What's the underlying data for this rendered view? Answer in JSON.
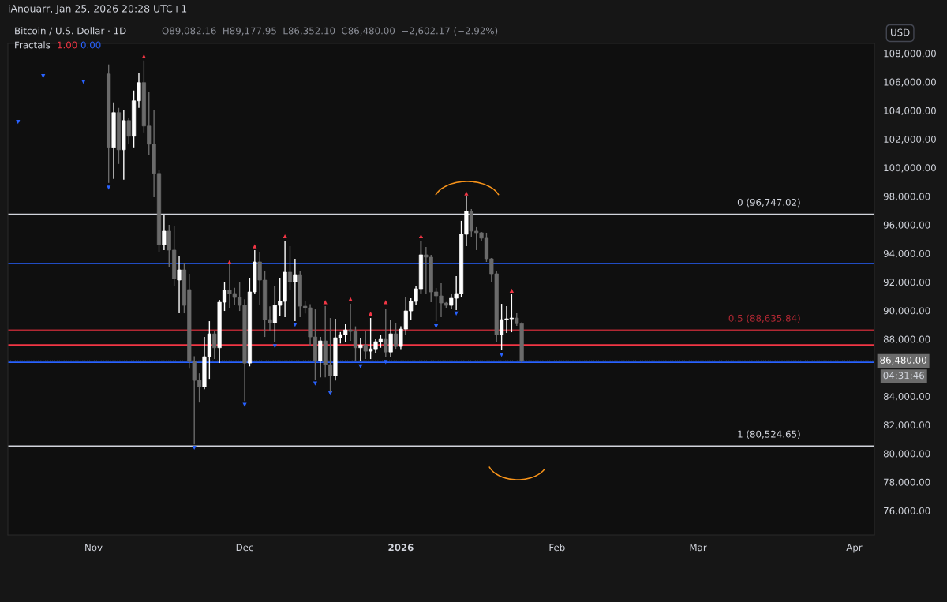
{
  "chart_data": {
    "type": "candlestick",
    "title": "Bitcoin / U.S. Dollar · 1D",
    "annotations": [
      "iAnouarr, Jan 25, 2026 20:28 UTC+1",
      "O89,082.16  H89,177.95  L86,352.10  C86,480.00  −2,602.17 (−2.92%)",
      "Fractals",
      "1.00",
      "0.00",
      "USD",
      "04:31:46"
    ],
    "x": [
      "2025-11-04",
      "2025-11-05",
      "2025-11-06",
      "2025-11-07",
      "2025-11-08",
      "2025-11-09",
      "2025-11-10",
      "2025-11-11",
      "2025-11-12",
      "2025-11-13",
      "2025-11-14",
      "2025-11-15",
      "2025-11-16",
      "2025-11-17",
      "2025-11-18",
      "2025-11-19",
      "2025-11-20",
      "2025-11-21",
      "2025-11-22",
      "2025-11-23",
      "2025-11-24",
      "2025-11-25",
      "2025-11-26",
      "2025-11-27",
      "2025-11-28",
      "2025-11-29",
      "2025-11-30",
      "2025-12-01",
      "2025-12-02",
      "2025-12-03",
      "2025-12-04",
      "2025-12-05",
      "2025-12-06",
      "2025-12-07",
      "2025-12-08",
      "2025-12-09",
      "2025-12-10",
      "2025-12-11",
      "2025-12-12",
      "2025-12-13",
      "2025-12-14",
      "2025-12-15",
      "2025-12-16",
      "2025-12-17",
      "2025-12-18",
      "2025-12-19",
      "2025-12-20",
      "2025-12-21",
      "2025-12-22",
      "2025-12-23",
      "2025-12-24",
      "2025-12-25",
      "2025-12-26",
      "2025-12-27",
      "2025-12-28",
      "2025-12-29",
      "2025-12-30",
      "2025-12-31",
      "2026-01-01",
      "2026-01-02",
      "2026-01-03",
      "2026-01-04",
      "2026-01-05",
      "2026-01-06",
      "2026-01-07",
      "2026-01-08",
      "2026-01-09",
      "2026-01-10",
      "2026-01-11",
      "2026-01-12",
      "2026-01-13",
      "2026-01-14",
      "2026-01-15",
      "2026-01-16",
      "2026-01-17",
      "2026-01-18",
      "2026-01-19",
      "2026-01-20",
      "2026-01-21",
      "2026-01-22",
      "2026-01-23",
      "2026-01-24",
      "2026-01-25"
    ],
    "ohlc": [
      [
        106563,
        107226,
        98934,
        101422
      ],
      [
        101422,
        104573,
        99210,
        103854
      ],
      [
        103854,
        104186,
        100261,
        101256
      ],
      [
        101256,
        104020,
        99155,
        103300
      ],
      [
        103300,
        103467,
        101643,
        102200
      ],
      [
        102200,
        105402,
        101422,
        104683
      ],
      [
        104683,
        106618,
        104186,
        105955
      ],
      [
        105955,
        107500,
        102472,
        102914
      ],
      [
        102914,
        105291,
        100869,
        101643
      ],
      [
        101643,
        104020,
        97939,
        99597
      ],
      [
        99597,
        99818,
        94070,
        94622
      ],
      [
        94622,
        96667,
        94235,
        95561
      ],
      [
        95561,
        96004,
        93074,
        94235
      ],
      [
        94235,
        95949,
        91692,
        92245
      ],
      [
        92134,
        93793,
        89813,
        92853
      ],
      [
        92853,
        93351,
        89813,
        90365
      ],
      [
        91471,
        92577,
        85943,
        86441
      ],
      [
        86441,
        86800,
        80636,
        85115
      ],
      [
        85115,
        85612,
        83566,
        84673
      ],
      [
        84673,
        88155,
        84507,
        86773
      ],
      [
        86773,
        89261,
        85225,
        88376
      ],
      [
        88376,
        88542,
        86607,
        87400
      ],
      [
        87400,
        90752,
        86331,
        90587
      ],
      [
        90587,
        91969,
        89979,
        91416
      ],
      [
        91416,
        93241,
        90200,
        91195
      ],
      [
        91195,
        91600,
        90400,
        90918
      ],
      [
        90918,
        91969,
        89979,
        90365
      ],
      [
        90365,
        90800,
        83677,
        86331
      ],
      [
        86331,
        92300,
        86100,
        91306
      ],
      [
        91306,
        94235,
        91140,
        93406
      ],
      [
        93406,
        94070,
        90365,
        92134
      ],
      [
        92134,
        92800,
        88155,
        89371
      ],
      [
        89371,
        90300,
        88542,
        89150
      ],
      [
        89150,
        91748,
        87824,
        90365
      ],
      [
        90365,
        92300,
        89647,
        90642
      ],
      [
        90642,
        94844,
        89537,
        92688
      ],
      [
        92688,
        94512,
        91471,
        92024
      ],
      [
        92024,
        93627,
        89261,
        92521
      ],
      [
        92521,
        92800,
        89537,
        90310
      ],
      [
        90310,
        90700,
        89800,
        90200
      ],
      [
        90200,
        90450,
        87500,
        88155
      ],
      [
        88155,
        90089,
        85170,
        86496
      ],
      [
        86496,
        88155,
        85335,
        87879
      ],
      [
        87879,
        90310,
        85335,
        86220
      ],
      [
        86220,
        89482,
        84285,
        85446
      ],
      [
        85446,
        89426,
        85115,
        88100
      ],
      [
        88100,
        88500,
        87700,
        88321
      ],
      [
        88321,
        89040,
        87824,
        88650
      ],
      [
        88650,
        90476,
        87879,
        88542
      ],
      [
        88542,
        88900,
        86496,
        87400
      ],
      [
        87400,
        88045,
        86441,
        87600
      ],
      [
        87600,
        88542,
        86607,
        87160
      ],
      [
        87160,
        89482,
        86607,
        87324
      ],
      [
        87324,
        87990,
        86994,
        87824
      ],
      [
        87824,
        88321,
        87400,
        87990
      ],
      [
        87990,
        90089,
        86773,
        87100
      ],
      [
        87100,
        89316,
        86773,
        88376
      ],
      [
        88376,
        89150,
        87324,
        87490
      ],
      [
        87490,
        88900,
        87300,
        88708
      ],
      [
        88708,
        90974,
        88321,
        89979
      ],
      [
        89979,
        90863,
        89371,
        90642
      ],
      [
        90642,
        91748,
        90400,
        91526
      ],
      [
        91526,
        94844,
        91200,
        93903
      ],
      [
        93903,
        94456,
        91195,
        93738
      ],
      [
        93738,
        93900,
        90587,
        91306
      ],
      [
        91306,
        91582,
        89261,
        91029
      ],
      [
        91029,
        91914,
        89537,
        90531
      ],
      [
        90531,
        90600,
        90200,
        90365
      ],
      [
        90365,
        91140,
        90089,
        90863
      ],
      [
        90863,
        92411,
        90034,
        91195
      ],
      [
        91195,
        96280,
        90918,
        95341
      ],
      [
        95341,
        97994,
        94512,
        96944
      ],
      [
        96944,
        97110,
        95175,
        95561
      ],
      [
        95561,
        95840,
        94235,
        95450
      ],
      [
        95450,
        95500,
        94900,
        95065
      ],
      [
        95065,
        95450,
        93406,
        93627
      ],
      [
        93627,
        93683,
        91969,
        92577
      ],
      [
        92577,
        92800,
        87824,
        88321
      ],
      [
        88321,
        90476,
        87269,
        89371
      ],
      [
        89371,
        90310,
        88431,
        89426
      ],
      [
        89426,
        91195,
        88487,
        89482
      ],
      [
        89482,
        89813,
        88929,
        89082
      ],
      [
        89082.16,
        89177.95,
        86352.1,
        86480.0
      ]
    ],
    "colors": [
      "#6b6b6b",
      "#ffffff",
      "#6b6b6b",
      "#ffffff",
      "#6b6b6b",
      "#ffffff",
      "#ffffff",
      "#6b6b6b",
      "#6b6b6b",
      "#6b6b6b",
      "#6b6b6b",
      "#ffffff",
      "#6b6b6b",
      "#6b6b6b",
      "#ffffff",
      "#6b6b6b",
      "#6b6b6b",
      "#6b6b6b",
      "#6b6b6b",
      "#ffffff",
      "#ffffff",
      "#6b6b6b",
      "#ffffff",
      "#ffffff",
      "#6b6b6b",
      "#6b6b6b",
      "#6b6b6b",
      "#6b6b6b",
      "#ffffff",
      "#ffffff",
      "#6b6b6b",
      "#6b6b6b",
      "#6b6b6b",
      "#ffffff",
      "#ffffff",
      "#ffffff",
      "#6b6b6b",
      "#ffffff",
      "#6b6b6b",
      "#6b6b6b",
      "#6b6b6b",
      "#6b6b6b",
      "#ffffff",
      "#6b6b6b",
      "#6b6b6b",
      "#ffffff",
      "#ffffff",
      "#ffffff",
      "#6b6b6b",
      "#6b6b6b",
      "#ffffff",
      "#6b6b6b",
      "#ffffff",
      "#ffffff",
      "#ffffff",
      "#6b6b6b",
      "#ffffff",
      "#6b6b6b",
      "#ffffff",
      "#ffffff",
      "#ffffff",
      "#ffffff",
      "#ffffff",
      "#6b6b6b",
      "#6b6b6b",
      "#6b6b6b",
      "#6b6b6b",
      "#6b6b6b",
      "#ffffff",
      "#ffffff",
      "#ffffff",
      "#ffffff",
      "#6b6b6b",
      "#6b6b6b",
      "#6b6b6b",
      "#6b6b6b",
      "#6b6b6b",
      "#6b6b6b",
      "#ffffff",
      "#ffffff",
      "#ffffff",
      "#6b6b6b",
      "#6b6b6b"
    ],
    "series": [
      {
        "type": "scatter",
        "marker": "triangle",
        "color": "#f23645",
        "x": [
          "2025-11-11",
          "2025-11-28",
          "2025-12-03",
          "2025-12-09",
          "2025-12-17",
          "2025-12-22",
          "2025-12-26",
          "2025-12-29",
          "2026-01-05",
          "2026-01-14",
          "2026-01-23"
        ],
        "values": [
          107800,
          93400,
          94500,
          95200,
          90600,
          90800,
          89800,
          90600,
          95200,
          98200,
          91400
        ]
      },
      {
        "type": "scatter",
        "marker": "triangle_down",
        "color": "#2962ff",
        "x": [
          "2025-10-17",
          "2025-10-22",
          "2025-10-30",
          "2025-11-04",
          "2025-11-21",
          "2025-12-01",
          "2025-12-07",
          "2025-12-11",
          "2025-12-15",
          "2025-12-18",
          "2025-12-24",
          "2025-12-29",
          "2026-01-08",
          "2026-01-12",
          "2026-01-21"
        ],
        "values": [
          103200,
          106400,
          106000,
          98600,
          80400,
          83400,
          87500,
          89000,
          84900,
          84200,
          86100,
          86400,
          88900,
          89800,
          86900
        ]
      }
    ],
    "ref_lines": [
      {
        "axis": "y",
        "value": 96747.02,
        "label": "0 (96,747.02)",
        "color": "#d1d4dc",
        "line_style": "solid"
      },
      {
        "axis": "y",
        "value": 88635.84,
        "label": "0.5 (88,635.84)",
        "color": "#b22833",
        "line_style": "solid"
      },
      {
        "axis": "y",
        "value": 80524.65,
        "label": "1 (80,524.65)",
        "color": "#d1d4dc",
        "line_style": "solid"
      },
      {
        "axis": "y",
        "value": 93296,
        "color": "#2962ff",
        "line_style": "solid"
      },
      {
        "axis": "y",
        "value": 87600,
        "color": "#f23645",
        "line_style": "solid"
      },
      {
        "axis": "y",
        "value": 86386,
        "color": "#2962ff",
        "line_style": "solid"
      },
      {
        "axis": "y",
        "value": 86480,
        "label": "86,480.00",
        "color": "#787b86",
        "line_style": "dotted"
      }
    ],
    "xlim": [
      "2025-10-15",
      "2026-04-05"
    ],
    "xticks": [
      {
        "value": "2025-11-01",
        "label": "Nov"
      },
      {
        "value": "2025-12-01",
        "label": "Dec"
      },
      {
        "value": "2026-01-01",
        "label": "2026"
      },
      {
        "value": "2026-02-01",
        "label": "Feb"
      },
      {
        "value": "2026-03-01",
        "label": "Mar"
      },
      {
        "value": "2026-04-01",
        "label": "Apr"
      }
    ],
    "ylim": [
      74300,
      108700
    ],
    "yticks": [
      {
        "value": 76000,
        "label": "76,000.00"
      },
      {
        "value": 78000,
        "label": "78,000.00"
      },
      {
        "value": 80000,
        "label": "80,000.00"
      },
      {
        "value": 82000,
        "label": "82,000.00"
      },
      {
        "value": 84000,
        "label": "84,000.00"
      },
      {
        "value": 88000,
        "label": "88,000.00"
      },
      {
        "value": 90000,
        "label": "90,000.00"
      },
      {
        "value": 92000,
        "label": "92,000.00"
      },
      {
        "value": 94000,
        "label": "94,000.00"
      },
      {
        "value": 96000,
        "label": "96,000.00"
      },
      {
        "value": 98000,
        "label": "98,000.00"
      },
      {
        "value": 100000,
        "label": "100,000.00"
      },
      {
        "value": 102000,
        "label": "102,000.00"
      },
      {
        "value": 104000,
        "label": "104,000.00"
      },
      {
        "value": 106000,
        "label": "106,000.00"
      },
      {
        "value": 108000,
        "label": "108,000.00"
      }
    ],
    "grid": false,
    "legend": false
  }
}
